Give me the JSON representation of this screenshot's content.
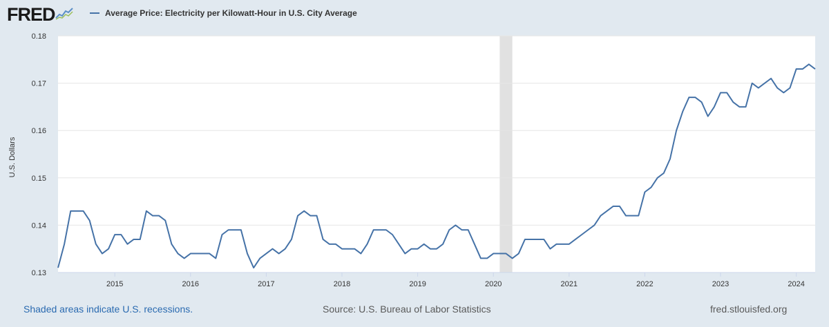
{
  "header": {
    "logo_text": "FRED",
    "series_legend": "Average Price: Electricity per Kilowatt-Hour in U.S. City Average"
  },
  "footer": {
    "recession_note": "Shaded areas indicate U.S. recessions.",
    "source": "Source: U.S. Bureau of Labor Statistics",
    "site": "fred.stlouisfed.org"
  },
  "colors": {
    "line": "#4572a7",
    "background": "#e1e9f0",
    "plot_background": "#ffffff",
    "recession_shade": "#e1e1e1",
    "grid": "#e6e6e6"
  },
  "icons": {
    "logo_graph": "fred-logo-graph-icon"
  },
  "chart_data": {
    "type": "line",
    "title": "Average Price: Electricity per Kilowatt-Hour in U.S. City Average",
    "ylabel": "U.S. Dollars",
    "xlabel": "",
    "ylim": [
      0.13,
      0.18
    ],
    "yticks": [
      "0.13",
      "0.14",
      "0.15",
      "0.16",
      "0.17",
      "0.18"
    ],
    "xticks": [
      "2015",
      "2016",
      "2017",
      "2018",
      "2019",
      "2020",
      "2021",
      "2022",
      "2023",
      "2024"
    ],
    "grid": true,
    "recessions": [
      {
        "start": "2020-02",
        "end": "2020-04"
      }
    ],
    "series": [
      {
        "name": "Average Price: Electricity per Kilowatt-Hour in U.S. City Average",
        "start": "2014-04",
        "frequency": "monthly",
        "values": [
          0.131,
          0.136,
          0.143,
          0.143,
          0.143,
          0.141,
          0.136,
          0.134,
          0.135,
          0.138,
          0.138,
          0.136,
          0.137,
          0.137,
          0.143,
          0.142,
          0.142,
          0.141,
          0.136,
          0.134,
          0.133,
          0.134,
          0.134,
          0.134,
          0.134,
          0.133,
          0.138,
          0.139,
          0.139,
          0.139,
          0.134,
          0.131,
          0.133,
          0.134,
          0.135,
          0.134,
          0.135,
          0.137,
          0.142,
          0.143,
          0.142,
          0.142,
          0.137,
          0.136,
          0.136,
          0.135,
          0.135,
          0.135,
          0.134,
          0.136,
          0.139,
          0.139,
          0.139,
          0.138,
          0.136,
          0.134,
          0.135,
          0.135,
          0.136,
          0.135,
          0.135,
          0.136,
          0.139,
          0.14,
          0.139,
          0.139,
          0.136,
          0.133,
          0.133,
          0.134,
          0.134,
          0.134,
          0.133,
          0.134,
          0.137,
          0.137,
          0.137,
          0.137,
          0.135,
          0.136,
          0.136,
          0.136,
          0.137,
          0.138,
          0.139,
          0.14,
          0.142,
          0.143,
          0.144,
          0.144,
          0.142,
          0.142,
          0.142,
          0.147,
          0.148,
          0.15,
          0.151,
          0.154,
          0.16,
          0.164,
          0.167,
          0.167,
          0.166,
          0.163,
          0.165,
          0.168,
          0.168,
          0.166,
          0.165,
          0.165,
          0.17,
          0.169,
          0.17,
          0.171,
          0.169,
          0.168,
          0.169,
          0.173,
          0.173,
          0.174,
          0.173
        ]
      }
    ]
  }
}
